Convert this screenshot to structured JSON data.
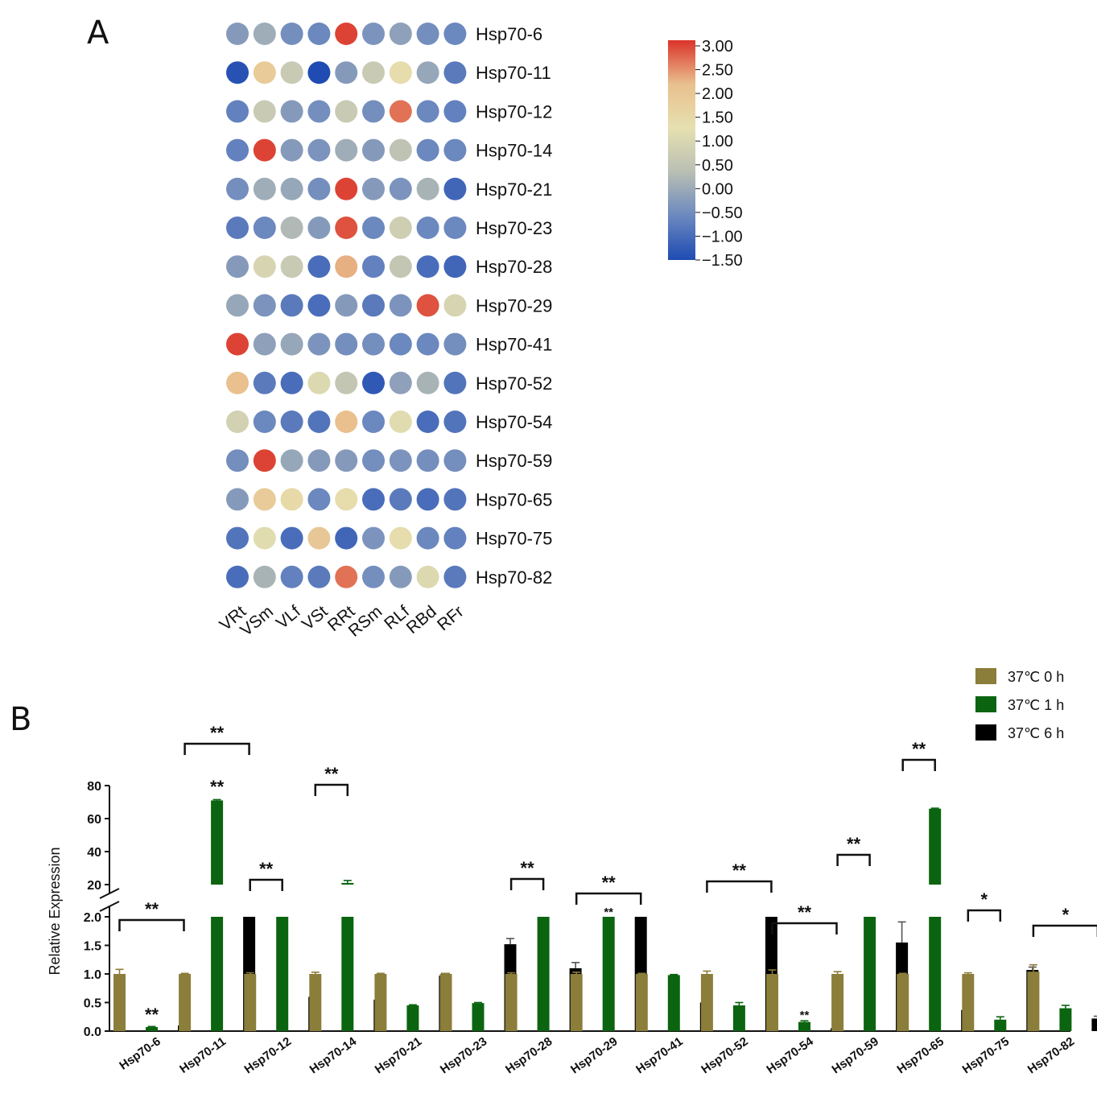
{
  "chart_data": [
    {
      "type": "heatmap",
      "panel_label": "A",
      "rows": [
        "Hsp70-6",
        "Hsp70-11",
        "Hsp70-12",
        "Hsp70-14",
        "Hsp70-21",
        "Hsp70-23",
        "Hsp70-28",
        "Hsp70-29",
        "Hsp70-41",
        "Hsp70-52",
        "Hsp70-54",
        "Hsp70-59",
        "Hsp70-65",
        "Hsp70-75",
        "Hsp70-82"
      ],
      "columns": [
        "VRt",
        "VSm",
        "VLf",
        "VSt",
        "RRt",
        "RSm",
        "RLf",
        "RBd",
        "RFr"
      ],
      "values": [
        [
          -0.3,
          0.0,
          -0.5,
          -0.6,
          2.9,
          -0.4,
          -0.2,
          -0.5,
          -0.6
        ],
        [
          -1.4,
          1.8,
          0.6,
          -1.5,
          -0.3,
          0.6,
          1.3,
          -0.1,
          -0.8
        ],
        [
          -0.7,
          0.6,
          -0.3,
          -0.5,
          0.6,
          -0.5,
          2.6,
          -0.6,
          -0.7
        ],
        [
          -0.7,
          2.9,
          -0.3,
          -0.4,
          0.0,
          -0.3,
          0.4,
          -0.6,
          -0.6
        ],
        [
          -0.5,
          0.0,
          -0.1,
          -0.5,
          2.9,
          -0.3,
          -0.4,
          0.1,
          -1.1
        ],
        [
          -0.8,
          -0.6,
          0.2,
          -0.3,
          2.8,
          -0.6,
          0.7,
          -0.6,
          -0.6
        ],
        [
          -0.3,
          0.9,
          0.6,
          -1.0,
          2.2,
          -0.7,
          0.5,
          -1.0,
          -1.1
        ],
        [
          -0.1,
          -0.4,
          -0.8,
          -1.0,
          -0.3,
          -0.8,
          -0.4,
          2.8,
          0.9
        ],
        [
          2.9,
          -0.2,
          -0.1,
          -0.4,
          -0.5,
          -0.5,
          -0.6,
          -0.6,
          -0.5
        ],
        [
          2.1,
          -0.8,
          -1.0,
          1.0,
          0.5,
          -1.3,
          -0.2,
          0.1,
          -0.9
        ],
        [
          0.8,
          -0.6,
          -0.8,
          -0.9,
          2.1,
          -0.6,
          1.1,
          -1.0,
          -0.9
        ],
        [
          -0.5,
          2.9,
          -0.1,
          -0.3,
          -0.3,
          -0.5,
          -0.4,
          -0.5,
          -0.5
        ],
        [
          -0.3,
          1.8,
          1.4,
          -0.6,
          1.3,
          -1.0,
          -0.8,
          -1.0,
          -0.9
        ],
        [
          -0.9,
          1.1,
          -1.0,
          1.9,
          -1.1,
          -0.4,
          1.3,
          -0.6,
          -0.7
        ],
        [
          -1.0,
          0.1,
          -0.7,
          -0.8,
          2.6,
          -0.5,
          -0.3,
          1.0,
          -0.8
        ]
      ],
      "colorbar": {
        "min": -1.5,
        "max": 3.0,
        "ticks": [
          "3.00",
          "2.50",
          "2.00",
          "1.50",
          "1.00",
          "0.50",
          "0.00",
          "−0.50",
          "−1.00",
          "−1.50"
        ],
        "colors": [
          "#1f4bb3",
          "#6b88bf",
          "#b9bfb4",
          "#e6e0b0",
          "#e9c08e",
          "#db3329"
        ]
      }
    },
    {
      "type": "bar",
      "panel_label": "B",
      "ylabel": "Relative Expression",
      "categories": [
        "Hsp70-6",
        "Hsp70-11",
        "Hsp70-12",
        "Hsp70-14",
        "Hsp70-21",
        "Hsp70-23",
        "Hsp70-28",
        "Hsp70-29",
        "Hsp70-41",
        "Hsp70-52",
        "Hsp70-54",
        "Hsp70-59",
        "Hsp70-65",
        "Hsp70-75",
        "Hsp70-82"
      ],
      "y_axis_break": {
        "lower_range": [
          0,
          2.0
        ],
        "upper_range": [
          20,
          80
        ],
        "lower_ticks": [
          "0.0",
          "0.5",
          "1.0",
          "1.5",
          "2.0"
        ],
        "upper_ticks": [
          "20",
          "40",
          "60",
          "80"
        ]
      },
      "series": [
        {
          "name": "37℃ 0 h",
          "color": "#8b7d3a",
          "values": [
            1.0,
            1.0,
            1.0,
            1.0,
            1.0,
            1.0,
            1.0,
            1.0,
            1.0,
            1.0,
            1.0,
            1.0,
            1.0,
            1.0,
            1.04
          ],
          "errors": [
            0.08,
            0.01,
            0.02,
            0.03,
            0.01,
            0.01,
            0.02,
            0.03,
            0.01,
            0.05,
            0.07,
            0.04,
            0.01,
            0.02,
            0.12
          ]
        },
        {
          "name": "37℃ 1 h",
          "color": "#0b6410",
          "values": [
            0.07,
            71,
            4.0,
            21,
            0.45,
            0.49,
            4.0,
            4.0,
            0.98,
            0.45,
            0.16,
            13.5,
            66,
            0.2,
            0.4
          ],
          "errors": [
            0.01,
            0.5,
            0.0,
            1.5,
            0.01,
            0.01,
            0.0,
            0.0,
            0.01,
            0.05,
            0.02,
            0.8,
            0.3,
            0.05,
            0.05
          ]
        },
        {
          "name": "37℃ 6 h",
          "color": "#000000",
          "values": [
            0.1,
            4.0,
            0.6,
            0.55,
            0.97,
            1.52,
            1.1,
            4.0,
            0.5,
            4.0,
            0.05,
            1.55,
            0.37,
            1.07,
            0.22
          ],
          "errors": [
            0.01,
            0.0,
            0.01,
            0.05,
            0.04,
            0.1,
            0.1,
            0.0,
            0.01,
            0.0,
            0.01,
            0.36,
            0.01,
            0.05,
            0.04
          ]
        }
      ],
      "comparison_brackets": [
        {
          "category": "Hsp70-6",
          "label": "**",
          "inner_label": "**"
        },
        {
          "category": "Hsp70-11",
          "label": "**",
          "inner_label": "**"
        },
        {
          "category": "Hsp70-12",
          "label": "**"
        },
        {
          "category": "Hsp70-14",
          "label": "**"
        },
        {
          "category": "Hsp70-28",
          "label": "**"
        },
        {
          "category": "Hsp70-29",
          "label": "**",
          "inner_label": "**"
        },
        {
          "category": "Hsp70-52",
          "label": "**"
        },
        {
          "category": "Hsp70-54",
          "label": "**",
          "inner_label": "**"
        },
        {
          "category": "Hsp70-59",
          "label": "**"
        },
        {
          "category": "Hsp70-65",
          "label": "**"
        },
        {
          "category": "Hsp70-75",
          "label": "*"
        },
        {
          "category": "Hsp70-82",
          "label": "*"
        }
      ],
      "legend": [
        "37℃ 0 h",
        "37℃ 1 h",
        "37℃ 6 h"
      ]
    }
  ]
}
